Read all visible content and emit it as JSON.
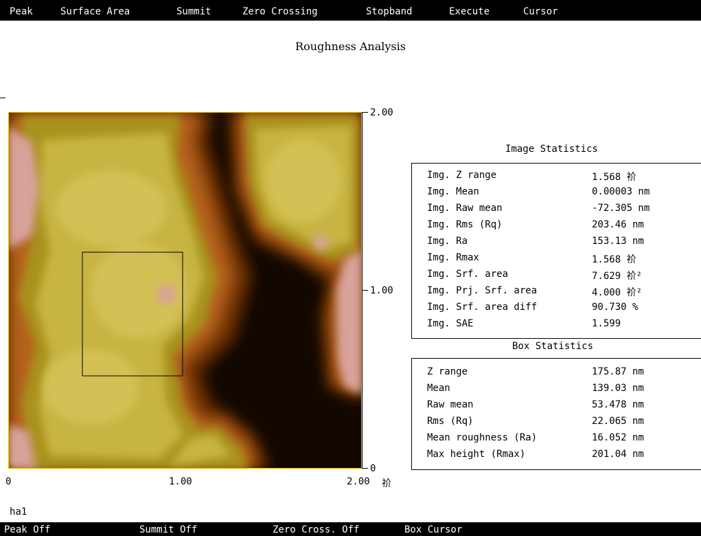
{
  "menu": [
    "Peak",
    "Surface Area",
    "Summit",
    "Zero Crossing",
    "Stopband",
    "Execute",
    "Cursor"
  ],
  "title": "Roughness Analysis",
  "axis": {
    "right_ticks": [
      "2.00",
      "1.00",
      "0"
    ],
    "bottom_ticks": [
      "0",
      "1.00",
      "2.00"
    ],
    "bottom_unit": "祄"
  },
  "image_stats": {
    "heading": "Image Statistics",
    "rows": [
      {
        "label": "Img. Z range",
        "value": "1.568 祄"
      },
      {
        "label": "Img. Mean",
        "value": "0.00003 nm"
      },
      {
        "label": "Img. Raw mean",
        "value": "-72.305 nm"
      },
      {
        "label": "Img. Rms (Rq)",
        "value": "203.46 nm"
      },
      {
        "label": "Img. Ra",
        "value": "153.13 nm"
      },
      {
        "label": "Img. Rmax",
        "value": "1.568 祄"
      },
      {
        "label": "Img. Srf. area",
        "value": "7.629 祄²"
      },
      {
        "label": "Img. Prj. Srf. area",
        "value": "4.000 祄²"
      },
      {
        "label": "Img. Srf. area diff",
        "value": "90.730 %"
      },
      {
        "label": "Img. SAE",
        "value": "1.599"
      }
    ]
  },
  "box_stats": {
    "heading": "Box Statistics",
    "rows": [
      {
        "label": "Z range",
        "value": "175.87 nm"
      },
      {
        "label": "Mean",
        "value": "139.03 nm"
      },
      {
        "label": "Raw mean",
        "value": "53.478 nm"
      },
      {
        "label": "Rms (Rq)",
        "value": "22.065 nm"
      },
      {
        "label": "Mean roughness (Ra)",
        "value": "16.052 nm"
      },
      {
        "label": "Max height (Rmax)",
        "value": "201.04 nm"
      }
    ]
  },
  "footer_label": "ha1",
  "status": [
    "Peak Off",
    "Summit Off",
    "Zero Cross. Off",
    "Box Cursor"
  ],
  "colors": {
    "bar_bg": "#000000",
    "bar_fg": "#ffffff",
    "image_border": "#e8c200",
    "afm_dark": "#120800",
    "afm_mid": "#b86a14",
    "afm_high": "#c9b437",
    "afm_peak": "#d9a6a0"
  }
}
